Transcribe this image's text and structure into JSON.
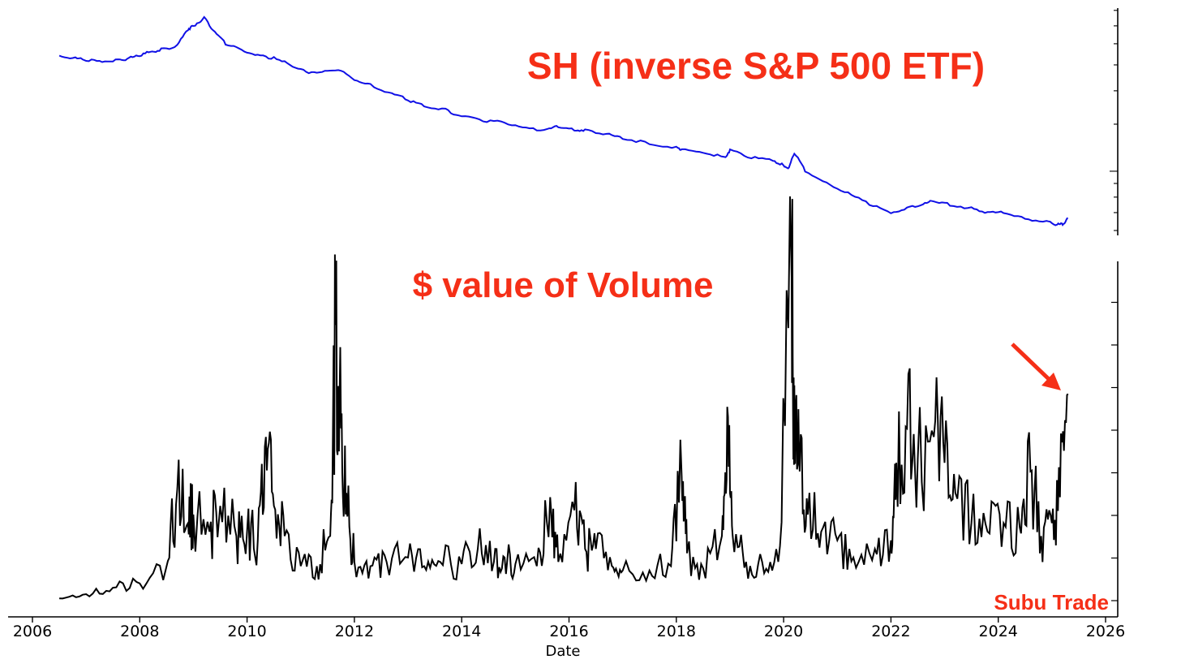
{
  "chart_data": [
    {
      "type": "line",
      "title": "",
      "xlabel": "",
      "ylabel": "",
      "yscale": "log",
      "series": [
        {
          "color": "#1010e6",
          "x": [
            2006.5,
            2006.8,
            2007.0,
            2007.3,
            2007.6,
            2007.8,
            2008.0,
            2008.2,
            2008.4,
            2008.7,
            2008.9,
            2009.0,
            2009.2,
            2009.4,
            2009.6,
            2009.9,
            2010.2,
            2010.5,
            2010.8,
            2011.1,
            2011.4,
            2011.7,
            2012.0,
            2012.3,
            2012.7,
            2013.0,
            2013.3,
            2013.7,
            2014.0,
            2014.4,
            2014.8,
            2015.2,
            2015.6,
            2015.8,
            2016.1,
            2016.3,
            2016.7,
            2017.0,
            2017.5,
            2018.0,
            2018.1,
            2018.5,
            2018.9,
            2019.0,
            2019.4,
            2019.8,
            2020.0,
            2020.1,
            2020.2,
            2020.4,
            2020.8,
            2021.2,
            2021.6,
            2022.0,
            2022.3,
            2022.6,
            2022.8,
            2023.1,
            2023.5,
            2023.8,
            2024.1,
            2024.5,
            2024.9,
            2025.1,
            2025.2,
            2025.3
          ],
          "y": [
            54,
            53,
            52,
            51.5,
            52,
            53,
            54,
            56,
            57,
            59,
            68,
            70,
            75,
            66,
            60,
            57,
            54,
            53,
            50,
            47,
            47,
            48,
            44,
            42,
            39,
            37,
            35,
            34,
            32,
            31,
            30.5,
            29,
            28.5,
            29.5,
            28.5,
            28.5,
            27.5,
            26.5,
            25.5,
            24.5,
            24,
            23.5,
            22.5,
            24,
            22.5,
            22,
            21,
            20.5,
            23.5,
            20,
            18,
            16.5,
            15,
            14,
            14.5,
            15,
            15.5,
            15,
            14.5,
            14,
            14,
            13.3,
            12.9,
            12.6,
            12.7,
            13.3
          ]
        }
      ],
      "annotations": [
        {
          "text": "SH (inverse S&P 500 ETF)",
          "color": "#f52f17"
        }
      ]
    },
    {
      "type": "line",
      "title": "",
      "xlabel": "Date",
      "ylabel": "",
      "xlim": [
        2006,
        2026
      ],
      "xticks": [
        "2006",
        "2008",
        "2010",
        "2012",
        "2014",
        "2016",
        "2018",
        "2020",
        "2022",
        "2024",
        "2026"
      ],
      "series": [
        {
          "color": "#000000",
          "x": [
            2006.5,
            2007.0,
            2007.5,
            2008.0,
            2008.5,
            2008.7,
            2008.9,
            2009.0,
            2009.3,
            2009.5,
            2009.8,
            2010.0,
            2010.2,
            2010.35,
            2010.5,
            2010.7,
            2011.0,
            2011.3,
            2011.55,
            2011.65,
            2011.75,
            2011.85,
            2012.0,
            2012.3,
            2012.6,
            2013.0,
            2013.3,
            2013.6,
            2014.0,
            2014.3,
            2014.6,
            2014.8,
            2015.0,
            2015.4,
            2015.65,
            2015.8,
            2016.1,
            2016.3,
            2016.5,
            2016.8,
            2017.0,
            2017.5,
            2017.9,
            2018.1,
            2018.2,
            2018.5,
            2018.85,
            2018.95,
            2019.05,
            2019.3,
            2019.6,
            2019.9,
            2020.15,
            2020.2,
            2020.3,
            2020.45,
            2020.7,
            2021.0,
            2021.3,
            2021.7,
            2022.0,
            2022.1,
            2022.3,
            2022.5,
            2022.8,
            2023.0,
            2023.2,
            2023.5,
            2023.8,
            2024.1,
            2024.4,
            2024.6,
            2024.8,
            2025.0,
            2025.15,
            2025.3
          ],
          "y": [
            0.05,
            0.15,
            0.3,
            0.4,
            0.8,
            2.6,
            1.8,
            2.0,
            1.6,
            2.2,
            1.5,
            1.6,
            1.4,
            3.8,
            2.2,
            1.5,
            0.8,
            0.8,
            1.5,
            6.4,
            4.0,
            2.5,
            0.9,
            0.8,
            0.9,
            1.0,
            0.8,
            0.9,
            0.85,
            1.2,
            0.9,
            1.0,
            0.85,
            0.8,
            2.4,
            0.9,
            2.1,
            1.2,
            1.2,
            0.8,
            0.7,
            0.7,
            0.8,
            2.9,
            1.1,
            0.75,
            1.5,
            4.5,
            1.5,
            0.9,
            0.9,
            0.9,
            7.5,
            5.0,
            3.0,
            2.0,
            1.6,
            1.4,
            1.0,
            1.2,
            1.4,
            3.2,
            4.0,
            3.3,
            3.8,
            3.2,
            2.5,
            1.8,
            1.6,
            1.8,
            1.7,
            3.0,
            1.5,
            1.8,
            2.4,
            4.8
          ]
        }
      ],
      "annotations": [
        {
          "text": "$ value of Volume",
          "color": "#f52f17"
        },
        {
          "text": "Subu Trade",
          "color": "#f52f17"
        }
      ]
    }
  ]
}
